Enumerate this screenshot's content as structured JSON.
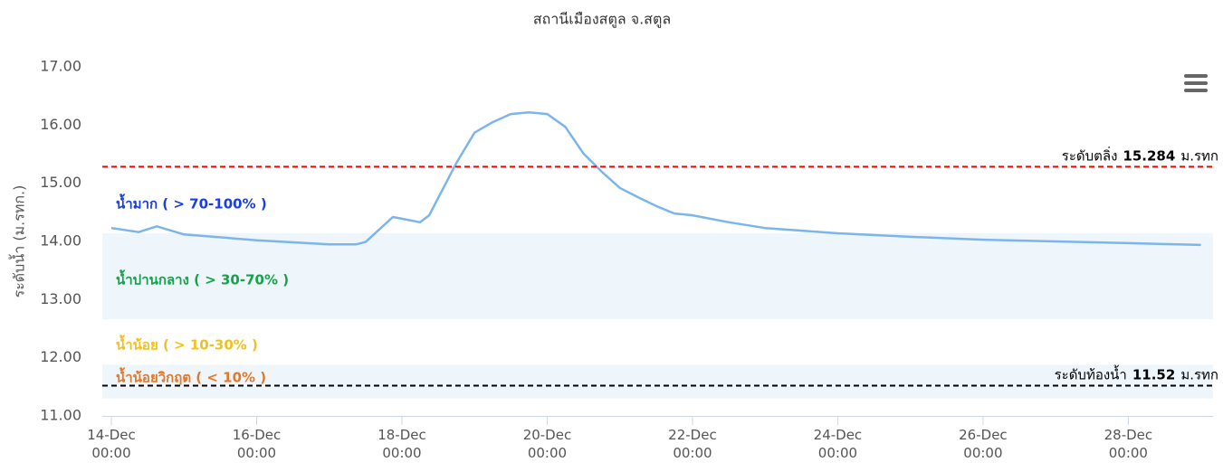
{
  "chart_data": {
    "type": "line",
    "title": "สถานีเมืองสตูล จ.สตูล",
    "y_axis_label": "ระดับน้ำ (ม.รทก.)",
    "x": [
      "14-Dec 00:00",
      "14-Dec 09:00",
      "14-Dec 15:00",
      "15-Dec 00:00",
      "16-Dec 00:00",
      "17-Dec 00:00",
      "17-Dec 09:00",
      "17-Dec 12:00",
      "17-Dec 21:00",
      "18-Dec 00:00",
      "18-Dec 06:00",
      "18-Dec 09:00",
      "18-Dec 18:00",
      "19-Dec 00:00",
      "19-Dec 06:00",
      "19-Dec 12:00",
      "19-Dec 18:00",
      "20-Dec 00:00",
      "20-Dec 06:00",
      "20-Dec 12:00",
      "20-Dec 18:00",
      "21-Dec 00:00",
      "21-Dec 06:00",
      "21-Dec 12:00",
      "21-Dec 18:00",
      "22-Dec 00:00",
      "22-Dec 12:00",
      "23-Dec 00:00",
      "24-Dec 00:00",
      "25-Dec 00:00",
      "26-Dec 00:00",
      "27-Dec 00:00",
      "28-Dec 00:00",
      "29-Dec 00:00"
    ],
    "values": [
      14.23,
      14.16,
      14.26,
      14.12,
      14.02,
      13.95,
      13.95,
      13.99,
      14.42,
      14.39,
      14.33,
      14.45,
      15.35,
      15.87,
      16.05,
      16.19,
      16.22,
      16.19,
      15.97,
      15.51,
      15.2,
      14.92,
      14.76,
      14.61,
      14.48,
      14.45,
      14.33,
      14.23,
      14.14,
      14.08,
      14.03,
      14.0,
      13.97,
      13.94
    ],
    "color": "#7cb5ec",
    "xlim": [
      "13-Dec 21:00",
      "29-Dec 04:00"
    ],
    "xticks": [
      "14-Dec 00:00",
      "16-Dec 00:00",
      "18-Dec 00:00",
      "20-Dec 00:00",
      "22-Dec 00:00",
      "24-Dec 00:00",
      "26-Dec 00:00",
      "28-Dec 00:00"
    ],
    "ylim": [
      11,
      17
    ],
    "yticks": [
      {
        "value": 11,
        "label": "11.00"
      },
      {
        "value": 12,
        "label": "12.00"
      },
      {
        "value": 13,
        "label": "13.00"
      },
      {
        "value": 14,
        "label": "14.00"
      },
      {
        "value": 15,
        "label": "15.00"
      },
      {
        "value": 16,
        "label": "16.00"
      },
      {
        "value": 17,
        "label": "17.00"
      }
    ],
    "grid": false,
    "plot_bands": [
      {
        "from": 12.66,
        "to": 14.14,
        "color": "#eef5fb"
      },
      {
        "from": 11.3,
        "to": 11.88,
        "color": "#eef5fb"
      }
    ],
    "plot_lines": [
      {
        "label": "ระดับตลิ่ง",
        "value": 15.284,
        "unit": "ม.รทก",
        "color": "#ff0000"
      },
      {
        "label": "ระดับท้องน้ำ",
        "value": 11.52,
        "unit": "ม.รทก",
        "color": "#000000"
      }
    ],
    "annotations": [
      {
        "text": "น้ำมาก ( > 70-100% )",
        "color": "#1a3fe0"
      },
      {
        "text": "น้ำปานกลาง ( > 30-70% )",
        "color": "#14a34a"
      },
      {
        "text": "น้ำน้อย ( > 10-30% )",
        "color": "#f2c01e"
      },
      {
        "text": "น้ำน้อยวิกฤต ( < 10% )",
        "color": "#e07a2a"
      }
    ]
  }
}
